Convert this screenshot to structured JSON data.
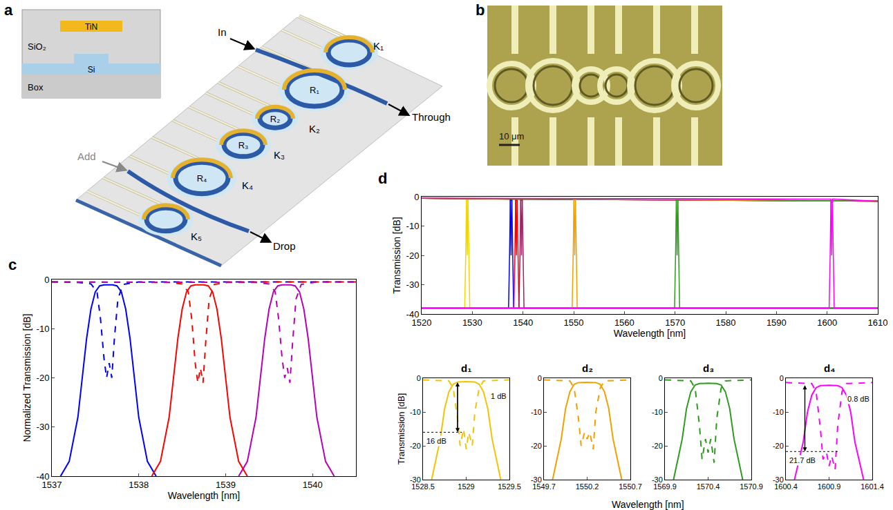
{
  "diagram": {
    "letter": "a",
    "cross_section": {
      "metal": "TiN",
      "cladding": "SiO₂",
      "core": "Si",
      "substrate": "Box"
    },
    "ports": {
      "input": "In",
      "add": "Add",
      "through": "Through",
      "drop": "Drop"
    },
    "rings": [
      "R₁",
      "R₂",
      "R₃",
      "R₄"
    ],
    "couplers": [
      "K₁",
      "K₂",
      "K₃",
      "K₄",
      "K₅"
    ]
  },
  "photo": {
    "letter": "b",
    "scale_bar": "10 μm"
  },
  "inset_xlabel": "Wavelength [nm]",
  "chart_data": [
    {
      "letter": "c",
      "type": "line",
      "xlabel": "Wavelength [nm]",
      "ylabel": "Normalized Transmission [dB]",
      "xlim": [
        1537,
        1540.5
      ],
      "xticks": [
        1537,
        1538,
        1539,
        1540
      ],
      "ylim": [
        -40,
        0
      ],
      "yticks": [
        -40,
        -30,
        -20,
        -10,
        0
      ],
      "grid": false,
      "series": [
        {
          "color": "#0000ff",
          "line_style": "dashed",
          "x": [
            1537,
            1537.3,
            1537.45,
            1537.52,
            1537.56,
            1537.6,
            1537.63,
            1537.66,
            1537.69,
            1537.72,
            1537.76,
            1537.82,
            1538,
            1540.5
          ],
          "values": [
            -0.5,
            -0.6,
            -0.9,
            -2.5,
            -8,
            -16,
            -20,
            -17,
            -20,
            -12,
            -4,
            -1,
            -0.5,
            -0.5
          ]
        },
        {
          "color": "#ff0000",
          "line_style": "dashed",
          "x": [
            1537,
            1538.35,
            1538.5,
            1538.57,
            1538.61,
            1538.65,
            1538.68,
            1538.71,
            1538.74,
            1538.77,
            1538.81,
            1538.87,
            1539.05,
            1540.5
          ],
          "values": [
            -0.5,
            -0.6,
            -0.9,
            -2.5,
            -8,
            -17,
            -21,
            -18,
            -21,
            -13,
            -4,
            -1,
            -0.5,
            -0.5
          ]
        },
        {
          "color": "#b800b8",
          "line_style": "dashed",
          "x": [
            1537,
            1539.35,
            1539.5,
            1539.57,
            1539.61,
            1539.65,
            1539.68,
            1539.71,
            1539.74,
            1539.77,
            1539.81,
            1539.87,
            1540.05,
            1540.5
          ],
          "values": [
            -0.5,
            -0.6,
            -0.9,
            -2.5,
            -8,
            -16,
            -20,
            -18,
            -21,
            -13,
            -4,
            -1,
            -0.5,
            -0.5
          ]
        },
        {
          "color": "#0000ff",
          "line_style": "solid",
          "x": [
            1537.1,
            1537.2,
            1537.3,
            1537.35,
            1537.4,
            1537.45,
            1537.5,
            1537.55,
            1537.6,
            1537.7,
            1537.75,
            1537.8,
            1537.85,
            1537.9,
            1537.95,
            1538.0,
            1538.1,
            1538.2
          ],
          "values": [
            -40,
            -37,
            -28,
            -20,
            -12,
            -6,
            -2.5,
            -1.3,
            -1.1,
            -1.1,
            -1.3,
            -2.5,
            -6,
            -12,
            -20,
            -28,
            -37,
            -40
          ]
        },
        {
          "color": "#ff0000",
          "line_style": "solid",
          "x": [
            1538.15,
            1538.25,
            1538.35,
            1538.4,
            1538.45,
            1538.5,
            1538.55,
            1538.6,
            1538.65,
            1538.75,
            1538.8,
            1538.85,
            1538.9,
            1538.95,
            1539.0,
            1539.05,
            1539.15,
            1539.25
          ],
          "values": [
            -40,
            -37,
            -28,
            -20,
            -12,
            -6,
            -2.5,
            -1.3,
            -1.1,
            -1.1,
            -1.3,
            -2.5,
            -6,
            -12,
            -20,
            -28,
            -37,
            -40
          ]
        },
        {
          "color": "#b800b8",
          "line_style": "solid",
          "x": [
            1539.15,
            1539.25,
            1539.35,
            1539.4,
            1539.45,
            1539.5,
            1539.55,
            1539.6,
            1539.65,
            1539.75,
            1539.8,
            1539.85,
            1539.9,
            1539.95,
            1540.0,
            1540.05,
            1540.15,
            1540.25
          ],
          "values": [
            -40,
            -37,
            -28,
            -20,
            -12,
            -6,
            -2.5,
            -1.3,
            -1.1,
            -1.1,
            -1.3,
            -2.5,
            -6,
            -12,
            -20,
            -28,
            -37,
            -40
          ]
        }
      ]
    },
    {
      "letter": "d",
      "type": "line",
      "xlabel": "Wavelength [nm]",
      "ylabel": "Transmission [dB]",
      "xlim": [
        1520,
        1610
      ],
      "xticks": [
        1520,
        1530,
        1540,
        1550,
        1560,
        1570,
        1580,
        1590,
        1600,
        1610
      ],
      "ylim": [
        -40,
        0
      ],
      "yticks": [
        -40,
        -30,
        -20,
        -10,
        0
      ],
      "grid": false,
      "series": [
        {
          "color": "#f2d600",
          "line_style": "solid",
          "x": [
            1520,
            1528.85,
            1529,
            1529.15,
            1610
          ],
          "values": [
            -0.5,
            -0.8,
            -20,
            -0.8,
            -1.5
          ]
        },
        {
          "color": "#0000ff",
          "line_style": "solid",
          "x": [
            1520,
            1537.5,
            1537.65,
            1537.8,
            1610
          ],
          "values": [
            -0.5,
            -0.8,
            -20,
            -0.8,
            -1.5
          ]
        },
        {
          "color": "#ff0000",
          "line_style": "solid",
          "x": [
            1520,
            1538.55,
            1538.7,
            1538.85,
            1610
          ],
          "values": [
            -0.5,
            -0.8,
            -20,
            -0.8,
            -1.5
          ]
        },
        {
          "color": "#9e1f63",
          "line_style": "solid",
          "x": [
            1520,
            1539.55,
            1539.7,
            1539.85,
            1610
          ],
          "values": [
            -0.5,
            -0.8,
            -20,
            -0.8,
            -1.5
          ]
        },
        {
          "color": "#f0a000",
          "line_style": "solid",
          "x": [
            1520,
            1550.05,
            1550.2,
            1550.35,
            1610
          ],
          "values": [
            -0.5,
            -0.8,
            -20,
            -0.8,
            -1.5
          ]
        },
        {
          "color": "#2e9a1e",
          "line_style": "solid",
          "x": [
            1520,
            1570.25,
            1570.4,
            1570.55,
            1610
          ],
          "values": [
            -0.5,
            -0.8,
            -20,
            -0.8,
            -1.5
          ]
        },
        {
          "color": "#ff00ff",
          "line_style": "solid",
          "x": [
            1520,
            1600.75,
            1600.9,
            1601.05,
            1610
          ],
          "values": [
            -0.5,
            -0.8,
            -20,
            -0.8,
            -1.5
          ]
        },
        {
          "color": "#f2d600",
          "line_style": "solid",
          "x": [
            1520,
            1528.5,
            1528.7,
            1528.85,
            1529.15,
            1529.3,
            1529.5,
            1610
          ],
          "values": [
            -38,
            -38,
            -20,
            -1.2,
            -1.2,
            -20,
            -38,
            -38
          ]
        },
        {
          "color": "#0000ff",
          "line_style": "solid",
          "x": [
            1520,
            1537.15,
            1537.35,
            1537.5,
            1537.8,
            1537.95,
            1538.15,
            1610
          ],
          "values": [
            -38,
            -38,
            -20,
            -1.2,
            -1.2,
            -20,
            -38,
            -38
          ]
        },
        {
          "color": "#ff0000",
          "line_style": "solid",
          "x": [
            1520,
            1538.2,
            1538.4,
            1538.55,
            1538.85,
            1539,
            1539.2,
            1610
          ],
          "values": [
            -38,
            -38,
            -20,
            -1.2,
            -1.2,
            -20,
            -38,
            -38
          ]
        },
        {
          "color": "#9e1f63",
          "line_style": "solid",
          "x": [
            1520,
            1539.2,
            1539.4,
            1539.55,
            1539.85,
            1540,
            1540.2,
            1610
          ],
          "values": [
            -38,
            -38,
            -20,
            -1.2,
            -1.2,
            -20,
            -38,
            -38
          ]
        },
        {
          "color": "#f0a000",
          "line_style": "solid",
          "x": [
            1520,
            1549.7,
            1549.9,
            1550.05,
            1550.35,
            1550.5,
            1550.7,
            1610
          ],
          "values": [
            -38,
            -38,
            -20,
            -1.2,
            -1.2,
            -20,
            -38,
            -38
          ]
        },
        {
          "color": "#2e9a1e",
          "line_style": "solid",
          "x": [
            1520,
            1569.9,
            1570.1,
            1570.25,
            1570.55,
            1570.7,
            1570.9,
            1610
          ],
          "values": [
            -38,
            -38,
            -20,
            -1.2,
            -1.2,
            -20,
            -38,
            -38
          ]
        },
        {
          "color": "#ff00ff",
          "line_style": "solid",
          "x": [
            1520,
            1600.4,
            1600.6,
            1600.75,
            1601.05,
            1601.2,
            1601.4,
            1610
          ],
          "values": [
            -38,
            -38,
            -20,
            -2,
            -2,
            -20,
            -38,
            -38
          ]
        }
      ]
    },
    {
      "title": "d₁",
      "type": "line",
      "ylabel": "Transmission [dB]",
      "xlim": [
        1528.5,
        1529.5
      ],
      "xticks": [
        1528.5,
        1529,
        1529.5
      ],
      "ylim": [
        -30,
        0
      ],
      "yticks": [
        -30,
        -20,
        -10,
        0
      ],
      "grid": false,
      "annotations": [
        "1 dB",
        "16 dB"
      ],
      "series": [
        {
          "color": "#f2c400",
          "line_style": "dashed",
          "x": [
            1528.5,
            1528.8,
            1528.85,
            1528.9,
            1528.93,
            1528.97,
            1529.0,
            1529.03,
            1529.07,
            1529.1,
            1529.15,
            1529.2,
            1529.5
          ],
          "values": [
            -0.5,
            -0.8,
            -3,
            -12,
            -20,
            -15,
            -21,
            -16,
            -20,
            -10,
            -3,
            -0.8,
            -0.5
          ]
        },
        {
          "color": "#f2c400",
          "line_style": "solid",
          "x": [
            1528.6,
            1528.7,
            1528.75,
            1528.8,
            1528.85,
            1528.9,
            1529.0,
            1529.1,
            1529.15,
            1529.2,
            1529.25,
            1529.3,
            1529.4
          ],
          "values": [
            -30,
            -18,
            -9,
            -4,
            -1.8,
            -1.1,
            -1,
            -1.1,
            -1.8,
            -4,
            -9,
            -18,
            -30
          ]
        }
      ]
    },
    {
      "title": "d₂",
      "type": "line",
      "xlim": [
        1549.7,
        1550.7
      ],
      "xticks": [
        1549.7,
        1550.2,
        1550.7
      ],
      "ylim": [
        -30,
        0
      ],
      "yticks": [
        -30,
        -20,
        -10,
        0
      ],
      "grid": false,
      "series": [
        {
          "color": "#f0a000",
          "line_style": "dashed",
          "x": [
            1549.7,
            1550.0,
            1550.05,
            1550.1,
            1550.13,
            1550.17,
            1550.2,
            1550.23,
            1550.27,
            1550.3,
            1550.35,
            1550.4,
            1550.7
          ],
          "values": [
            -0.5,
            -0.8,
            -3,
            -12,
            -20,
            -16,
            -18,
            -16,
            -21,
            -10,
            -3,
            -0.8,
            -0.5
          ]
        },
        {
          "color": "#f0a000",
          "line_style": "solid",
          "x": [
            1549.8,
            1549.9,
            1549.95,
            1550.0,
            1550.05,
            1550.1,
            1550.2,
            1550.3,
            1550.35,
            1550.4,
            1550.45,
            1550.5,
            1550.6
          ],
          "values": [
            -30,
            -18,
            -9,
            -4,
            -1.8,
            -1.3,
            -1.2,
            -1.3,
            -1.8,
            -4,
            -9,
            -18,
            -30
          ]
        }
      ]
    },
    {
      "title": "d₃",
      "type": "line",
      "xlim": [
        1569.9,
        1570.9
      ],
      "xticks": [
        1569.9,
        1570.4,
        1570.9
      ],
      "ylim": [
        -30,
        0
      ],
      "yticks": [
        -30,
        -20,
        -10,
        0
      ],
      "grid": false,
      "series": [
        {
          "color": "#2e9a1e",
          "line_style": "dashed",
          "x": [
            1569.9,
            1570.2,
            1570.25,
            1570.3,
            1570.33,
            1570.37,
            1570.4,
            1570.43,
            1570.47,
            1570.5,
            1570.55,
            1570.6,
            1570.9
          ],
          "values": [
            -0.5,
            -0.8,
            -3,
            -14,
            -24,
            -18,
            -22,
            -18,
            -25,
            -12,
            -3,
            -0.8,
            -0.5
          ]
        },
        {
          "color": "#2e9a1e",
          "line_style": "solid",
          "x": [
            1570.0,
            1570.1,
            1570.15,
            1570.2,
            1570.25,
            1570.3,
            1570.4,
            1570.5,
            1570.55,
            1570.6,
            1570.65,
            1570.7,
            1570.8
          ],
          "values": [
            -30,
            -18,
            -9,
            -4,
            -2,
            -1.6,
            -1.5,
            -1.6,
            -2,
            -4,
            -9,
            -18,
            -30
          ]
        }
      ]
    },
    {
      "title": "d₄",
      "type": "line",
      "xlim": [
        1600.4,
        1601.4
      ],
      "xticks": [
        1600.4,
        1600.9,
        1601.4
      ],
      "ylim": [
        -30,
        0
      ],
      "yticks": [
        -30,
        -20,
        -10,
        0
      ],
      "grid": false,
      "annotations": [
        "0.8 dB",
        "21.7 dB"
      ],
      "series": [
        {
          "color": "#ff00ff",
          "line_style": "dashed",
          "x": [
            1600.4,
            1600.7,
            1600.75,
            1600.8,
            1600.83,
            1600.87,
            1600.9,
            1600.93,
            1600.97,
            1601.0,
            1601.05,
            1601.1,
            1601.4
          ],
          "values": [
            -1.3,
            -1.6,
            -4,
            -15,
            -24,
            -22,
            -26,
            -23,
            -27,
            -14,
            -4,
            -1.6,
            -1.3
          ]
        },
        {
          "color": "#ff00ff",
          "line_style": "solid",
          "x": [
            1600.5,
            1600.6,
            1600.65,
            1600.7,
            1600.75,
            1600.8,
            1600.9,
            1601.0,
            1601.05,
            1601.1,
            1601.15,
            1601.2,
            1601.3
          ],
          "values": [
            -30,
            -19,
            -10,
            -5,
            -2.8,
            -2.2,
            -2.1,
            -2.2,
            -2.8,
            -5,
            -10,
            -19,
            -30
          ]
        }
      ]
    }
  ]
}
